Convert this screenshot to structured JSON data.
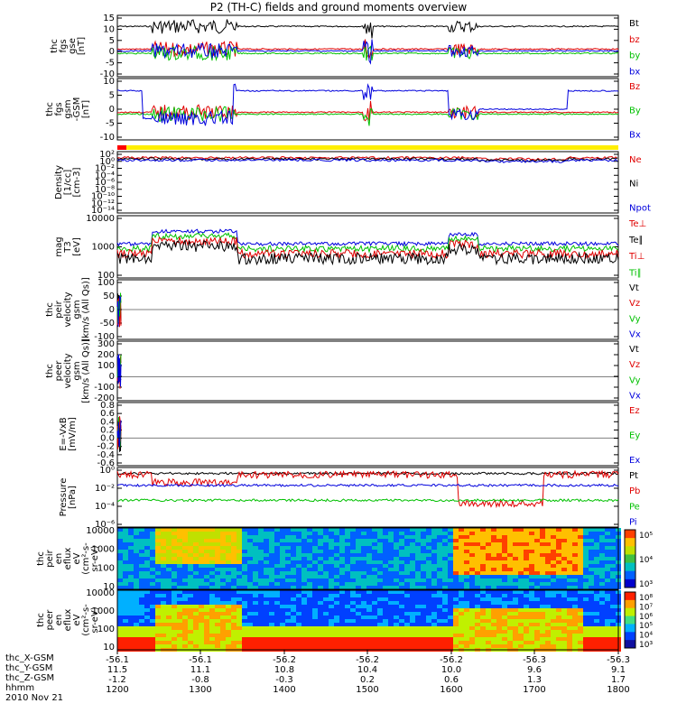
{
  "chart_data": {
    "type": "line",
    "title": "P2 (TH-C) fields and ground moments overview",
    "panels": [
      {
        "id": "fgs-gse",
        "ylabel": [
          "thc",
          "fgs",
          "gse",
          "[nT]"
        ],
        "yticks": [
          "15",
          "10",
          "5",
          "0",
          "-5",
          "-10"
        ],
        "ylim": [
          -12,
          16
        ],
        "legend": [
          {
            "name": "Bt",
            "color": "#000000"
          },
          {
            "name": "bz",
            "color": "#e00000"
          },
          {
            "name": "by",
            "color": "#00c000"
          },
          {
            "name": "bx",
            "color": "#0000dd"
          }
        ]
      },
      {
        "id": "fgs-gsm",
        "ylabel": [
          "thc",
          "fgs",
          "gsm",
          "-GSM",
          "[nT]"
        ],
        "yticks": [
          "10",
          "5",
          "0",
          "-5",
          "-10"
        ],
        "ylim": [
          -12,
          11
        ],
        "legend": [
          {
            "name": "Bz",
            "color": "#e00000"
          },
          {
            "name": "By",
            "color": "#00c000"
          },
          {
            "name": "Bx",
            "color": "#0000dd"
          }
        ]
      },
      {
        "id": "density",
        "ylabel": [
          "Density",
          "[1/cc]",
          "[cm-3]"
        ],
        "yticks": [
          "10²",
          "10⁰",
          "10⁻²",
          "10⁻⁴",
          "10⁻⁶",
          "10⁻⁸",
          "10⁻¹⁰",
          "10⁻¹²",
          "10⁻¹⁴"
        ],
        "log": true,
        "legend": [
          {
            "name": "Ne",
            "color": "#e00000"
          },
          {
            "name": "Ni",
            "color": "#000000"
          },
          {
            "name": "Npot",
            "color": "#0000dd"
          }
        ]
      },
      {
        "id": "temperature",
        "ylabel": [
          "mag",
          "T3",
          "[eV]"
        ],
        "yticks": [
          "10000",
          "1000",
          "100"
        ],
        "log": true,
        "legend": [
          {
            "name": "Te⊥",
            "color": "#e00000"
          },
          {
            "name": "Te∥",
            "color": "#000000"
          },
          {
            "name": "Ti⊥",
            "color": "#e00000"
          },
          {
            "name": "Ti∥",
            "color": "#00c000"
          }
        ]
      },
      {
        "id": "peir-velocity",
        "ylabel": [
          "thc",
          "peir",
          "velocity",
          "gsm",
          "[km/s (All Qs)]"
        ],
        "yticks": [
          "100",
          "50",
          "0",
          "-50",
          "-100"
        ],
        "ylim": [
          -100,
          100
        ],
        "legend": [
          {
            "name": "Vt",
            "color": "#000000"
          },
          {
            "name": "Vz",
            "color": "#e00000"
          },
          {
            "name": "Vy",
            "color": "#00c000"
          },
          {
            "name": "Vx",
            "color": "#0000dd"
          }
        ]
      },
      {
        "id": "peer-velocity",
        "ylabel": [
          "thc",
          "peer",
          "velocity",
          "gsm",
          "[km/s (All Qs)]"
        ],
        "yticks": [
          "300",
          "200",
          "100",
          "0",
          "-100",
          "-200"
        ],
        "ylim": [
          -200,
          300
        ],
        "legend": [
          {
            "name": "Vt",
            "color": "#000000"
          },
          {
            "name": "Vz",
            "color": "#e00000"
          },
          {
            "name": "Vy",
            "color": "#00c000"
          },
          {
            "name": "Vx",
            "color": "#0000dd"
          }
        ]
      },
      {
        "id": "e-field",
        "ylabel": [
          "E=-VxB",
          "[mV/m]"
        ],
        "yticks": [
          "0.8",
          "0.6",
          "0.4",
          "0.2",
          "0.0",
          "-0.2",
          "-0.4",
          "-0.6"
        ],
        "ylim": [
          -0.7,
          0.9
        ],
        "legend": [
          {
            "name": "Ez",
            "color": "#e00000"
          },
          {
            "name": "Ey",
            "color": "#00c000"
          },
          {
            "name": "Ex",
            "color": "#0000dd"
          }
        ]
      },
      {
        "id": "pressure",
        "ylabel": [
          "Pressure",
          "[nPa]"
        ],
        "yticks": [
          "10⁰",
          "10⁻²",
          "10⁻⁴",
          "10⁻⁶"
        ],
        "log": true,
        "legend": [
          {
            "name": "Pt",
            "color": "#000000"
          },
          {
            "name": "Pb",
            "color": "#e00000"
          },
          {
            "name": "Pe",
            "color": "#00c000"
          },
          {
            "name": "Pi",
            "color": "#0000dd"
          }
        ]
      },
      {
        "id": "peir-spectrogram",
        "ylabel": [
          "thc",
          "peir",
          "en",
          "eflux",
          "eV",
          "(cm²-s-",
          "sr-eV)"
        ],
        "yticks": [
          "10000",
          "1000",
          "100",
          "10"
        ],
        "colorbar_ticks": [
          "10⁵",
          "10⁴",
          "10³"
        ]
      },
      {
        "id": "peer-spectrogram",
        "ylabel": [
          "thc",
          "peer",
          "en",
          "eflux",
          "eV",
          "(cm²-s-",
          "sr-eV)"
        ],
        "yticks": [
          "10000",
          "1000",
          "100",
          "10"
        ],
        "colorbar_ticks": [
          "10⁸",
          "10⁷",
          "10⁶",
          "10⁵",
          "10⁴",
          "10³"
        ]
      }
    ],
    "x_axis": {
      "rows": [
        {
          "label": "thc_X-GSM",
          "values": [
            "-56.1",
            "-56.1",
            "-56.2",
            "-56.2",
            "-56.2",
            "-56.3",
            "-56.3"
          ]
        },
        {
          "label": "thc_Y-GSM",
          "values": [
            "11.5",
            "11.1",
            "10.8",
            "10.4",
            "10.0",
            "9.6",
            "9.1"
          ]
        },
        {
          "label": "thc_Z-GSM",
          "values": [
            "-1.2",
            "-0.8",
            "-0.3",
            "0.2",
            "0.6",
            "1.3",
            "1.7"
          ]
        },
        {
          "label": "hhmm",
          "values": [
            "1200",
            "1300",
            "1400",
            "1500",
            "1600",
            "1700",
            "1800"
          ]
        }
      ],
      "date": "2010 Nov 21"
    }
  }
}
